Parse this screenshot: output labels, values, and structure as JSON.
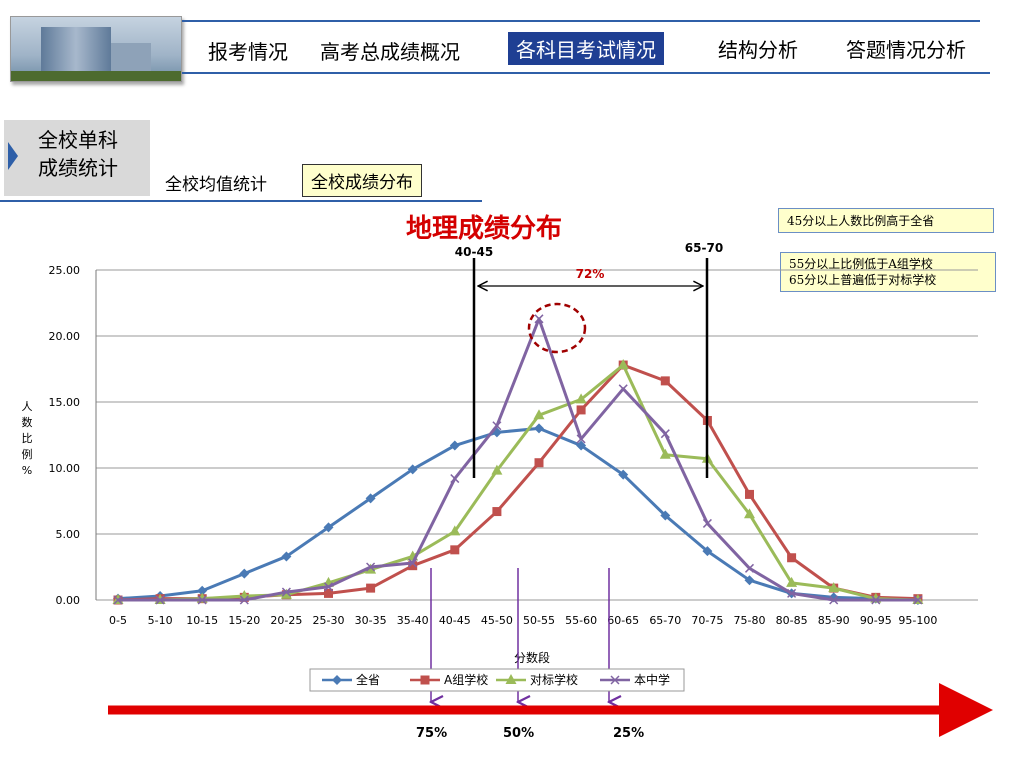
{
  "nav": {
    "items": [
      "报考情况",
      "高考总成绩概况",
      "各科目考试情况",
      "结构分析",
      "答题情况分析"
    ],
    "active_index": 2
  },
  "sidebar": {
    "label_line1": "全校单科",
    "label_line2": "成绩统计"
  },
  "subtabs": {
    "mean": "全校均值统计",
    "distribution": "全校成绩分布",
    "active": "distribution"
  },
  "notes": {
    "note1": "45分以上人数比例高于全省",
    "note2_line1": "55分以上比例低于A组学校",
    "note2_line2": "65分以上普遍低于对标学校"
  },
  "annotations": {
    "left_marker": "40-45",
    "right_marker": "65-70",
    "span_label": "72%",
    "pct_75": "75%",
    "pct_50": "50%",
    "pct_25": "25%"
  },
  "colors": {
    "accent_red": "#d40000",
    "nav_blue": "#1f3f93"
  },
  "chart_data": {
    "type": "line",
    "title": "地理成绩分布",
    "xlabel": "分数段",
    "ylabel": "人数比例%",
    "ylim": [
      0,
      25
    ],
    "yticks": [
      "0.00",
      "5.00",
      "10.00",
      "15.00",
      "20.00",
      "25.00"
    ],
    "categories": [
      "0-5",
      "5-10",
      "10-15",
      "15-20",
      "20-25",
      "25-30",
      "30-35",
      "35-40",
      "40-45",
      "45-50",
      "50-55",
      "55-60",
      "60-65",
      "65-70",
      "70-75",
      "75-80",
      "80-85",
      "85-90",
      "90-95",
      "95-100"
    ],
    "grid": true,
    "legend_position": "bottom",
    "series": [
      {
        "name": "全省",
        "color": "#4a7ab5",
        "marker": "diamond",
        "values": [
          0.1,
          0.3,
          0.7,
          2.0,
          3.3,
          5.5,
          7.7,
          9.9,
          11.7,
          12.7,
          13.0,
          11.7,
          9.5,
          6.4,
          3.7,
          1.5,
          0.5,
          0.2,
          0.1,
          0.0
        ]
      },
      {
        "name": "A组学校",
        "color": "#c0504d",
        "marker": "square",
        "values": [
          0.0,
          0.1,
          0.1,
          0.2,
          0.4,
          0.5,
          0.9,
          2.6,
          3.8,
          6.7,
          10.4,
          14.4,
          17.8,
          16.6,
          13.6,
          8.0,
          3.2,
          0.9,
          0.2,
          0.1
        ]
      },
      {
        "name": "对标学校",
        "color": "#9bbb59",
        "marker": "triangle",
        "values": [
          0.0,
          0.0,
          0.1,
          0.3,
          0.4,
          1.3,
          2.3,
          3.3,
          5.2,
          9.8,
          14.0,
          15.2,
          17.8,
          11.0,
          10.7,
          6.5,
          1.3,
          0.9,
          0.1,
          0.0
        ]
      },
      {
        "name": "本中学",
        "color": "#8064a2",
        "marker": "x",
        "values": [
          0.0,
          0.0,
          0.0,
          0.0,
          0.6,
          1.0,
          2.5,
          2.8,
          9.2,
          13.2,
          21.3,
          12.2,
          16.0,
          12.6,
          5.8,
          2.4,
          0.5,
          0.0,
          0.0,
          0.0
        ]
      }
    ]
  }
}
